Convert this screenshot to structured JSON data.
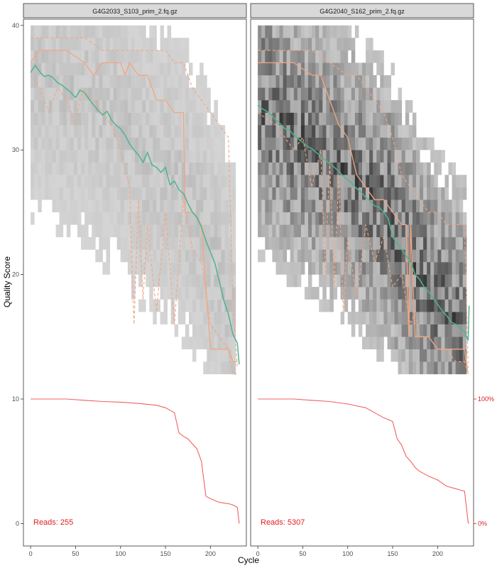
{
  "chart_data": {
    "type": "line",
    "ylabel": "Quality Score",
    "xlabel": "Cycle",
    "xlim": [
      -8,
      240
    ],
    "ylim": [
      -1.8,
      40.5
    ],
    "x_ticks": [
      0,
      50,
      100,
      150,
      200
    ],
    "x_tick_labels": [
      "0",
      "50",
      "100",
      "150",
      "200"
    ],
    "y_ticks": [
      0,
      10,
      20,
      30,
      40
    ],
    "y_tick_labels": [
      "0",
      "10",
      "20",
      "30",
      "40"
    ],
    "secondary_y_ticks": [
      {
        "value": 0,
        "label": "0%"
      },
      {
        "value": 10,
        "label": "100%"
      }
    ],
    "grid": false,
    "colors": {
      "mean": "#4fb38f",
      "quantile": "#f4a582",
      "cumulative": "#ee4444",
      "reads_text": "#e11d1d",
      "strip_bg": "#d9d9d9"
    },
    "panels": [
      {
        "title": "G4G2033_S103_prim_2.fq.gz",
        "reads_label": "Reads:  255",
        "heat_intensity": 0.15,
        "mean": {
          "x": [
            0,
            5,
            10,
            15,
            20,
            25,
            30,
            35,
            40,
            45,
            50,
            55,
            60,
            65,
            70,
            75,
            80,
            85,
            90,
            95,
            100,
            105,
            110,
            115,
            120,
            125,
            130,
            135,
            140,
            145,
            150,
            155,
            160,
            165,
            170,
            175,
            180,
            185,
            190,
            195,
            200,
            205,
            210,
            215,
            220,
            225,
            230,
            232
          ],
          "y": [
            36.2,
            36.8,
            36.3,
            35.9,
            36.0,
            35.8,
            35.4,
            35.2,
            34.9,
            34.6,
            34.2,
            34.8,
            34.6,
            34.1,
            33.6,
            33.2,
            32.8,
            33.1,
            32.4,
            32.0,
            31.7,
            31.2,
            30.5,
            30.0,
            29.6,
            29.0,
            29.8,
            28.8,
            28.6,
            28.2,
            28.6,
            27.2,
            27.5,
            26.8,
            26.5,
            25.7,
            25.0,
            24.6,
            23.8,
            22.7,
            21.8,
            20.9,
            19.4,
            17.9,
            16.8,
            15.2,
            14.5,
            12.8
          ]
        },
        "median": {
          "x": [
            0,
            10,
            40,
            60,
            70,
            80,
            90,
            100,
            105,
            110,
            120,
            130,
            140,
            150,
            160,
            170,
            172,
            180,
            190,
            200,
            210,
            220,
            225,
            230
          ],
          "y": [
            37.0,
            38.0,
            38.0,
            37.0,
            36.0,
            37.0,
            37.0,
            37.0,
            36.0,
            37.0,
            36.0,
            36.0,
            34.0,
            34.0,
            33.0,
            33.0,
            25.0,
            25.0,
            24.0,
            14.0,
            14.0,
            14.0,
            13.0,
            13.0
          ]
        },
        "q25": {
          "x": [
            0,
            10,
            20,
            30,
            40,
            50,
            55,
            60,
            70,
            80,
            90,
            100,
            110,
            115,
            120,
            125,
            130,
            140,
            150,
            160,
            170,
            180,
            190,
            200,
            210,
            220,
            225,
            230
          ],
          "y": [
            36.0,
            35.0,
            33.0,
            35.0,
            34.0,
            32.0,
            34.0,
            35.0,
            34.0,
            33.0,
            32.0,
            30.0,
            27.0,
            16.0,
            26.0,
            18.0,
            24.0,
            17.0,
            25.0,
            16.0,
            26.0,
            22.0,
            21.0,
            16.0,
            15.0,
            14.0,
            12.0,
            12.0
          ]
        },
        "q75": {
          "x": [
            0,
            20,
            40,
            60,
            80,
            100,
            120,
            140,
            150,
            160,
            170,
            180,
            190,
            200,
            210,
            220,
            225,
            230
          ],
          "y": [
            39.0,
            39.0,
            39.0,
            39.0,
            38.0,
            38.0,
            38.0,
            38.0,
            38.0,
            37.0,
            37.0,
            35.0,
            34.0,
            33.0,
            32.0,
            31.0,
            18.0,
            12.5
          ]
        },
        "cumulative": {
          "x": [
            0,
            20,
            40,
            60,
            80,
            100,
            120,
            140,
            150,
            160,
            165,
            170,
            175,
            180,
            185,
            190,
            195,
            200,
            210,
            220,
            225,
            230,
            232
          ],
          "y": [
            10.0,
            10.0,
            10.0,
            9.9,
            9.8,
            9.75,
            9.65,
            9.5,
            9.3,
            8.9,
            7.3,
            7.0,
            6.8,
            6.4,
            6.0,
            5.0,
            2.2,
            2.0,
            1.7,
            1.6,
            1.5,
            1.3,
            0.0
          ]
        }
      },
      {
        "title": "G4G2040_S162_prim_2.fq.gz",
        "reads_label": "Reads:  5307",
        "heat_intensity": 0.85,
        "mean": {
          "x": [
            0,
            5,
            10,
            15,
            20,
            25,
            30,
            35,
            40,
            45,
            50,
            55,
            60,
            65,
            70,
            75,
            80,
            85,
            90,
            95,
            100,
            105,
            110,
            115,
            120,
            125,
            130,
            135,
            140,
            145,
            150,
            155,
            160,
            165,
            170,
            175,
            180,
            185,
            190,
            195,
            200,
            205,
            210,
            215,
            220,
            225,
            230,
            234,
            235
          ],
          "y": [
            33.6,
            33.3,
            33.1,
            32.8,
            32.4,
            32.1,
            31.7,
            31.6,
            31.2,
            30.9,
            30.6,
            30.3,
            30.1,
            29.8,
            29.5,
            29.2,
            28.9,
            28.6,
            28.3,
            27.9,
            27.6,
            27.3,
            26.9,
            26.6,
            26.2,
            25.9,
            25.5,
            25.4,
            25.0,
            24.5,
            23.0,
            22.5,
            22.0,
            21.5,
            21.0,
            20.0,
            19.6,
            19.0,
            18.6,
            18.1,
            17.6,
            17.1,
            16.7,
            16.2,
            16.0,
            15.7,
            15.4,
            14.7,
            17.5
          ]
        },
        "median": {
          "x": [
            0,
            20,
            40,
            60,
            70,
            80,
            90,
            100,
            110,
            120,
            130,
            140,
            150,
            160,
            165,
            168,
            170,
            175,
            180,
            190,
            200,
            210,
            220,
            230,
            234
          ],
          "y": [
            37.0,
            37.0,
            37.0,
            36.0,
            36.0,
            34.0,
            32.0,
            31.0,
            28.0,
            27.0,
            26.0,
            26.0,
            25.0,
            24.0,
            24.0,
            15.0,
            24.0,
            15.0,
            15.0,
            15.0,
            14.0,
            14.0,
            14.0,
            14.0,
            12.0
          ]
        },
        "q25": {
          "x": [
            0,
            20,
            40,
            50,
            60,
            70,
            75,
            80,
            85,
            90,
            95,
            100,
            110,
            120,
            130,
            140,
            150,
            160,
            170,
            175,
            180,
            190,
            200,
            210,
            220,
            230,
            234
          ],
          "y": [
            33.0,
            32.0,
            30.0,
            31.0,
            27.0,
            30.0,
            20.0,
            29.0,
            19.0,
            28.0,
            17.0,
            23.0,
            18.0,
            24.0,
            21.0,
            23.0,
            19.0,
            20.0,
            16.0,
            17.0,
            15.0,
            15.0,
            14.0,
            14.0,
            13.0,
            13.0,
            12.0
          ]
        },
        "q75": {
          "x": [
            0,
            20,
            40,
            60,
            80,
            100,
            110,
            120,
            130,
            140,
            150,
            160,
            170,
            180,
            190,
            200,
            210,
            220,
            230,
            234
          ],
          "y": [
            38.0,
            38.0,
            38.0,
            38.0,
            37.0,
            36.0,
            36.0,
            35.0,
            34.0,
            33.0,
            31.0,
            28.0,
            27.0,
            26.0,
            25.0,
            25.0,
            24.0,
            24.0,
            24.0,
            12.5
          ]
        },
        "cumulative": {
          "x": [
            0,
            20,
            40,
            60,
            80,
            100,
            120,
            130,
            140,
            150,
            155,
            160,
            165,
            170,
            175,
            180,
            190,
            200,
            210,
            220,
            225,
            230,
            234,
            235
          ],
          "y": [
            10.0,
            10.0,
            10.0,
            9.9,
            9.8,
            9.6,
            9.3,
            8.9,
            8.5,
            8.2,
            6.8,
            6.3,
            5.4,
            5.0,
            4.5,
            4.2,
            3.8,
            3.5,
            3.0,
            2.8,
            2.7,
            2.6,
            0.1,
            0.0
          ]
        }
      }
    ]
  }
}
